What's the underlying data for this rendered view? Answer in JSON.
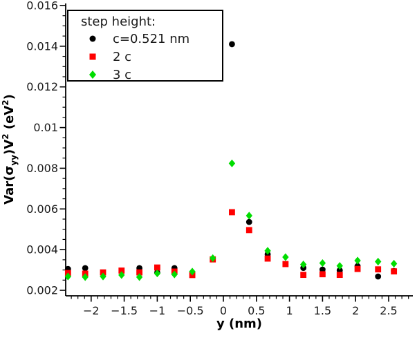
{
  "figure": {
    "background": "#ffffff"
  },
  "chart_data": {
    "type": "scatter",
    "title": "",
    "xlabel": "y (nm)",
    "ylabel": "Var(σyy)V² (eV²)",
    "ylabel_parts": {
      "p0": "Var(σ",
      "sub1": "yy",
      "p1": ")V",
      "sup1": "2",
      "p2": " (eV",
      "sup2": "2",
      "p3": ")"
    },
    "legend_title": "step height:",
    "legend_position": "upper-left",
    "grid": false,
    "axes": {
      "xlim": [
        -2.39,
        2.87
      ],
      "ylim": [
        0.00173,
        0.01612
      ],
      "x_major": [
        -2,
        -1.5,
        -1,
        -0.5,
        0,
        0.5,
        1,
        1.5,
        2,
        2.5
      ],
      "x_major_labels": [
        "−2",
        "−1.5",
        "−1",
        "−0.5",
        "0",
        "0.5",
        "1",
        "1.5",
        "2",
        "2.5"
      ],
      "x_minor_step": 0.1,
      "y_major": [
        0.002,
        0.004,
        0.006,
        0.008,
        0.01,
        0.012,
        0.014,
        0.016
      ],
      "y_major_labels": [
        "0.002",
        "0.004",
        "0.006",
        "0.008",
        "0.01",
        "0.012",
        "0.014",
        "0.016"
      ],
      "y_minor_step": 0.0005
    },
    "series": [
      {
        "name": "c=0.521 nm",
        "marker": "circle",
        "color": "#000000",
        "points": [
          [
            -2.35,
            0.00305
          ],
          [
            -2.09,
            0.00309
          ],
          [
            -1.27,
            0.00309
          ],
          [
            -1.0,
            0.00287
          ],
          [
            -0.74,
            0.00309
          ],
          [
            0.13,
            0.0141
          ],
          [
            0.39,
            0.00536
          ],
          [
            0.67,
            0.00377
          ],
          [
            1.21,
            0.0031
          ],
          [
            1.5,
            0.00302
          ],
          [
            1.76,
            0.00298
          ],
          [
            2.03,
            0.00319
          ],
          [
            2.34,
            0.00268
          ],
          [
            2.58,
            0.00295
          ]
        ]
      },
      {
        "name": "2 c",
        "marker": "square",
        "color": "#ff0000",
        "points": [
          [
            -2.35,
            0.00285
          ],
          [
            -2.09,
            0.00282
          ],
          [
            -1.82,
            0.00288
          ],
          [
            -1.54,
            0.00297
          ],
          [
            -1.27,
            0.00288
          ],
          [
            -1.0,
            0.00312
          ],
          [
            -0.74,
            0.00292
          ],
          [
            -0.47,
            0.00275
          ],
          [
            -0.16,
            0.00352
          ],
          [
            0.13,
            0.00584
          ],
          [
            0.39,
            0.00496
          ],
          [
            0.67,
            0.00356
          ],
          [
            0.94,
            0.00329
          ],
          [
            1.21,
            0.00276
          ],
          [
            1.5,
            0.00279
          ],
          [
            1.76,
            0.00276
          ],
          [
            2.03,
            0.00305
          ],
          [
            2.34,
            0.00303
          ],
          [
            2.58,
            0.00293
          ]
        ]
      },
      {
        "name": "3 c",
        "marker": "diamond",
        "color": "#00dd00",
        "points": [
          [
            -2.35,
            0.00268
          ],
          [
            -2.09,
            0.00265
          ],
          [
            -1.82,
            0.00268
          ],
          [
            -1.54,
            0.00275
          ],
          [
            -1.27,
            0.00265
          ],
          [
            -1.0,
            0.00283
          ],
          [
            -0.74,
            0.00278
          ],
          [
            -0.47,
            0.00292
          ],
          [
            -0.16,
            0.00358
          ],
          [
            0.13,
            0.00824
          ],
          [
            0.39,
            0.00567
          ],
          [
            0.67,
            0.00394
          ],
          [
            0.94,
            0.00363
          ],
          [
            1.21,
            0.00327
          ],
          [
            1.5,
            0.00334
          ],
          [
            1.76,
            0.0032
          ],
          [
            2.03,
            0.00346
          ],
          [
            2.34,
            0.00341
          ],
          [
            2.58,
            0.00331
          ]
        ]
      }
    ]
  }
}
